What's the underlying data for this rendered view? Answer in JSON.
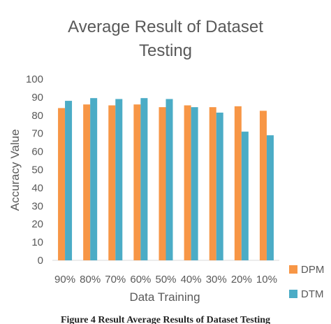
{
  "chart_data": {
    "type": "bar",
    "title_lines": [
      "Average Result of Dataset",
      "Testing"
    ],
    "xlabel": "Data Training",
    "ylabel": "Accuracy Value",
    "categories": [
      "90%",
      "80%",
      "70%",
      "60%",
      "50%",
      "40%",
      "30%",
      "20%",
      "10%"
    ],
    "series": [
      {
        "name": "DPM",
        "color": "#F79646",
        "values": [
          84,
          86,
          85.5,
          86,
          84.5,
          85.5,
          84.5,
          85,
          82.5
        ]
      },
      {
        "name": "DTM",
        "color": "#4BACC6",
        "values": [
          88,
          89.5,
          89,
          89.5,
          89,
          84.5,
          81.5,
          71,
          69
        ]
      }
    ],
    "ylim": [
      0,
      100
    ],
    "yticks": [
      0,
      10,
      20,
      30,
      40,
      50,
      60,
      70,
      80,
      90,
      100
    ],
    "grid": false,
    "legend_position": "right"
  },
  "caption": "Figure 4 Result Average Results of Dataset Testing"
}
